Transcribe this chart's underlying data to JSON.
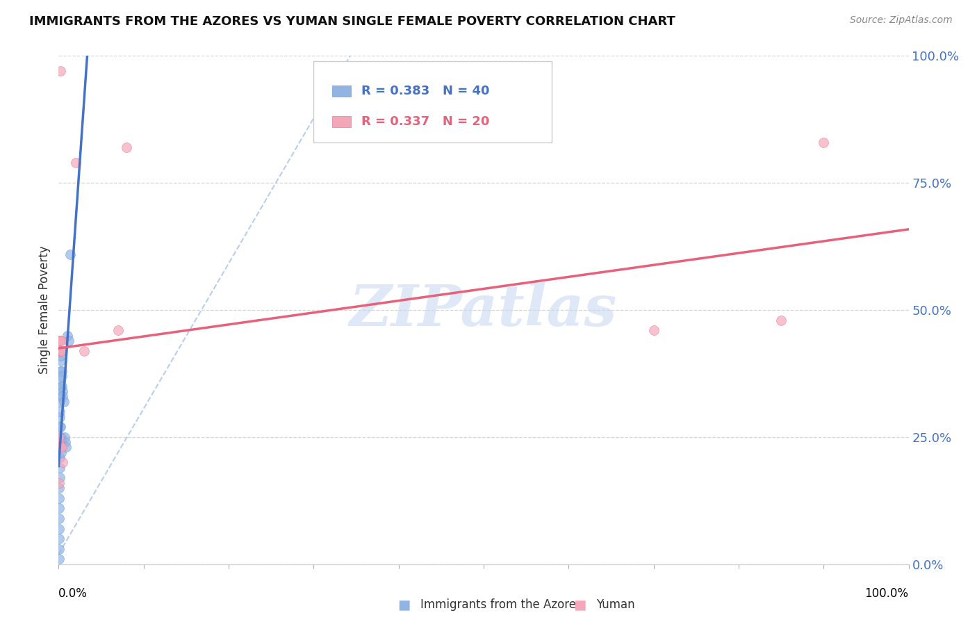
{
  "title": "IMMIGRANTS FROM THE AZORES VS YUMAN SINGLE FEMALE POVERTY CORRELATION CHART",
  "source": "Source: ZipAtlas.com",
  "ylabel": "Single Female Poverty",
  "yticks_labels": [
    "0.0%",
    "25.0%",
    "50.0%",
    "75.0%",
    "100.0%"
  ],
  "ytick_vals": [
    0.0,
    0.25,
    0.5,
    0.75,
    1.0
  ],
  "blue_color": "#92b4e3",
  "blue_edge_color": "#6a9fd8",
  "pink_color": "#f4a7b9",
  "pink_edge_color": "#e87a99",
  "blue_line_color": "#4472c4",
  "pink_line_color": "#e8607a",
  "blue_dash_color": "#92b4e3",
  "watermark_text": "ZIPatlas",
  "watermark_color": "#c8daf0",
  "blue_r": 0.383,
  "blue_n": 40,
  "pink_r": 0.337,
  "pink_n": 20,
  "blue_scatter_x": [
    0.0002,
    0.0003,
    0.0004,
    0.0005,
    0.0006,
    0.0007,
    0.0008,
    0.0009,
    0.001,
    0.001,
    0.0011,
    0.0012,
    0.0013,
    0.0014,
    0.0015,
    0.0016,
    0.0017,
    0.0018,
    0.0019,
    0.002,
    0.002,
    0.0021,
    0.0022,
    0.0023,
    0.0025,
    0.0028,
    0.003,
    0.0032,
    0.0035,
    0.0038,
    0.004,
    0.0045,
    0.005,
    0.006,
    0.007,
    0.008,
    0.009,
    0.01,
    0.012,
    0.014
  ],
  "blue_scatter_y": [
    0.01,
    0.03,
    0.05,
    0.07,
    0.09,
    0.11,
    0.13,
    0.15,
    0.17,
    0.19,
    0.21,
    0.23,
    0.25,
    0.27,
    0.29,
    0.3,
    0.32,
    0.33,
    0.35,
    0.36,
    0.38,
    0.4,
    0.41,
    0.42,
    0.27,
    0.25,
    0.24,
    0.22,
    0.38,
    0.37,
    0.35,
    0.34,
    0.33,
    0.32,
    0.25,
    0.24,
    0.23,
    0.45,
    0.44,
    0.61
  ],
  "pink_scatter_x": [
    0.0003,
    0.0005,
    0.0008,
    0.001,
    0.0012,
    0.0015,
    0.0018,
    0.002,
    0.0025,
    0.003,
    0.0035,
    0.004,
    0.005,
    0.02,
    0.03,
    0.07,
    0.08,
    0.7,
    0.85,
    0.9
  ],
  "pink_scatter_y": [
    0.16,
    0.24,
    0.25,
    0.44,
    0.44,
    0.42,
    0.23,
    0.97,
    0.42,
    0.44,
    0.23,
    0.42,
    0.2,
    0.79,
    0.42,
    0.46,
    0.82,
    0.46,
    0.48,
    0.83
  ]
}
